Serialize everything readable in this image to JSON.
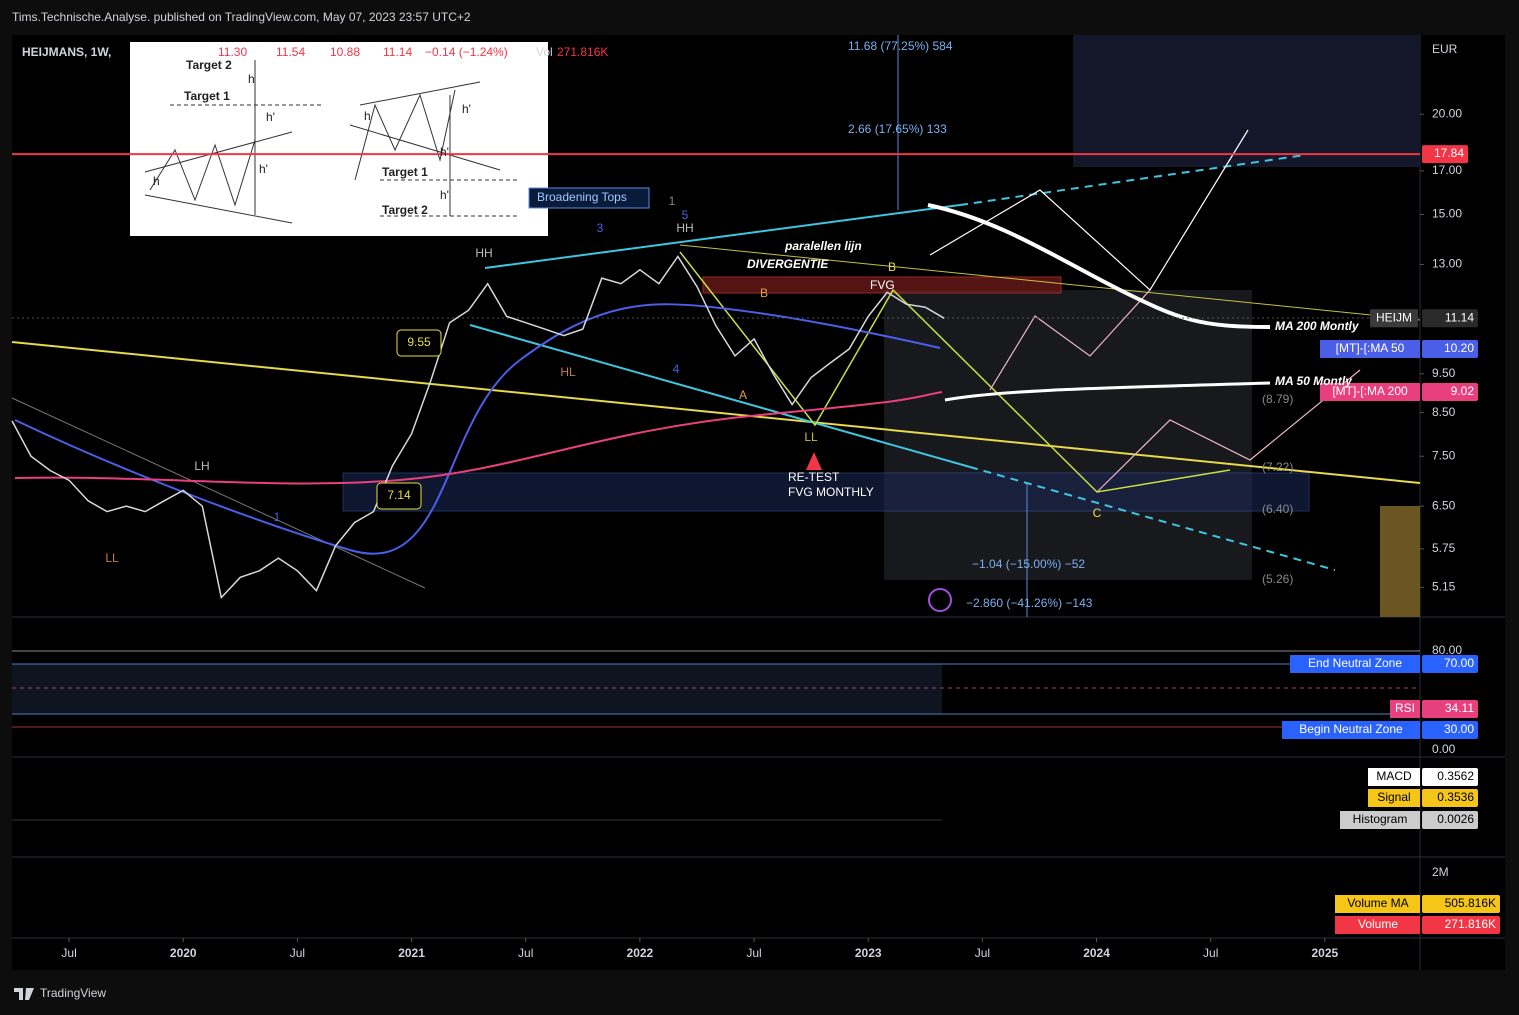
{
  "header": {
    "publisher": "Tims.Technische.Analyse. published on TradingView.com, May 07, 2023 23:57 UTC+2"
  },
  "legend": {
    "symbol": "HEIJMANS, 1W,",
    "open": "11.30",
    "high": "11.54",
    "low": "10.88",
    "close": "11.14",
    "change": "−0.14 (−1.24%)",
    "vol": "Vol",
    "volume": "271.816K"
  },
  "chart_data": {
    "type": "line",
    "currency": "EUR",
    "log_scale": true,
    "x": [
      "2019-04",
      "2019-05",
      "2019-06",
      "2019-07",
      "2019-08",
      "2019-09",
      "2019-10",
      "2019-11",
      "2019-12",
      "2020-01",
      "2020-02",
      "2020-03",
      "2020-04",
      "2020-05",
      "2020-06",
      "2020-07",
      "2020-08",
      "2020-09",
      "2020-10",
      "2020-11",
      "2020-12",
      "2021-01",
      "2021-02",
      "2021-03",
      "2021-04",
      "2021-05",
      "2021-06",
      "2021-07",
      "2021-08",
      "2021-09",
      "2021-10",
      "2021-11",
      "2021-12",
      "2022-01",
      "2022-02",
      "2022-03",
      "2022-04",
      "2022-05",
      "2022-06",
      "2022-07",
      "2022-08",
      "2022-09",
      "2022-10",
      "2022-11",
      "2022-12",
      "2023-01",
      "2023-02",
      "2023-03",
      "2023-04",
      "2023-05"
    ],
    "series": [
      {
        "name": "HEIJM",
        "color": "#d8d8d8",
        "values": [
          8.3,
          7.5,
          7.2,
          7.0,
          6.6,
          6.4,
          6.5,
          6.4,
          6.6,
          6.8,
          6.5,
          5.0,
          5.3,
          5.4,
          5.6,
          5.4,
          5.1,
          5.8,
          6.2,
          6.4,
          7.3,
          8.0,
          9.3,
          11.0,
          11.4,
          12.3,
          11.2,
          11.0,
          10.8,
          10.6,
          10.8,
          12.5,
          12.3,
          12.8,
          12.3,
          13.3,
          12.2,
          10.9,
          10.0,
          10.5,
          9.5,
          8.7,
          9.4,
          9.8,
          10.2,
          11.2,
          12.0,
          11.6,
          11.5,
          11.14
        ]
      }
    ],
    "xlim": [
      "2019-04",
      "2025-06"
    ],
    "xticks": [
      {
        "value": "2019-07",
        "label": "Jul"
      },
      {
        "value": "2020-01",
        "label": "2020"
      },
      {
        "value": "2020-07",
        "label": "Jul"
      },
      {
        "value": "2021-01",
        "label": "2021"
      },
      {
        "value": "2021-07",
        "label": "Jul"
      },
      {
        "value": "2022-01",
        "label": "2022"
      },
      {
        "value": "2022-07",
        "label": "Jul"
      },
      {
        "value": "2023-01",
        "label": "2023"
      },
      {
        "value": "2023-07",
        "label": "Jul"
      },
      {
        "value": "2024-01",
        "label": "2024"
      },
      {
        "value": "2024-07",
        "label": "Jul"
      },
      {
        "value": "2025-01",
        "label": "2025"
      }
    ],
    "ylim": [
      4.73,
      25.1
    ],
    "yticks": [
      {
        "value": 20,
        "label": "20.00"
      },
      {
        "value": 17,
        "label": "17.00"
      },
      {
        "value": 15,
        "label": "15.00"
      },
      {
        "value": 13,
        "label": "13.00"
      },
      {
        "value": 9.5,
        "label": "9.50"
      },
      {
        "value": 8.5,
        "label": "8.50"
      },
      {
        "value": 7.5,
        "label": "7.50"
      },
      {
        "value": 6.5,
        "label": "6.50"
      },
      {
        "value": 5.75,
        "label": "5.75"
      },
      {
        "value": 5.15,
        "label": "5.15"
      }
    ],
    "levels": [
      {
        "value": 17.84,
        "color": "#f23645"
      }
    ]
  },
  "price_tags": [
    {
      "name": "[MT]-[:MA 50",
      "value": "10.20",
      "color": "#4a5ee8"
    },
    {
      "name": "[MT]-[:MA 200",
      "value": "9.02",
      "color": "#e8407e"
    }
  ],
  "annotations": [
    "Broadening Tops",
    "paralellen lijn",
    "DIVERGENTIE",
    "FVG",
    "RE-TEST",
    "FVG MONTHLY",
    "HH",
    "HH",
    "HL",
    "LH",
    "LL",
    "LL",
    "1",
    "3",
    "4",
    "5",
    "1",
    "A",
    "B",
    "B",
    "C",
    "9.55",
    "7.14",
    "MA 200 Montly",
    "MA 50 Montly",
    "11.68 (77.25%) 584",
    "2.66 (17.65%) 133",
    "−1.04 (−15.00%) −52",
    "−2.860 (−41.26%) −143",
    "(8.79)",
    "(7.22)",
    "(6.40)",
    "(5.26)"
  ],
  "inset": {
    "labels": [
      "Target 2",
      "Target 1",
      "h",
      "h'",
      "h'",
      "h",
      "Target 1",
      "Target 2",
      "h",
      "h'",
      "h'",
      "h'"
    ]
  },
  "rsi": {
    "ticks": [
      "80.00",
      "0.00"
    ],
    "tags": [
      {
        "name": "End Neutral Zone",
        "value": "70.00"
      },
      {
        "name": "RSI",
        "value": "34.11"
      },
      {
        "name": "Begin Neutral Zone",
        "value": "30.00"
      }
    ]
  },
  "macd": {
    "tags": [
      {
        "name": "MACD",
        "value": "0.3562"
      },
      {
        "name": "Signal",
        "value": "0.3536"
      },
      {
        "name": "Histogram",
        "value": "0.0026"
      }
    ]
  },
  "volume": {
    "tick": "2M",
    "tags": [
      {
        "name": "Volume MA",
        "value": "505.816K"
      },
      {
        "name": "Volume",
        "value": "271.816K"
      }
    ]
  },
  "footer": {
    "brand": "TradingView"
  }
}
